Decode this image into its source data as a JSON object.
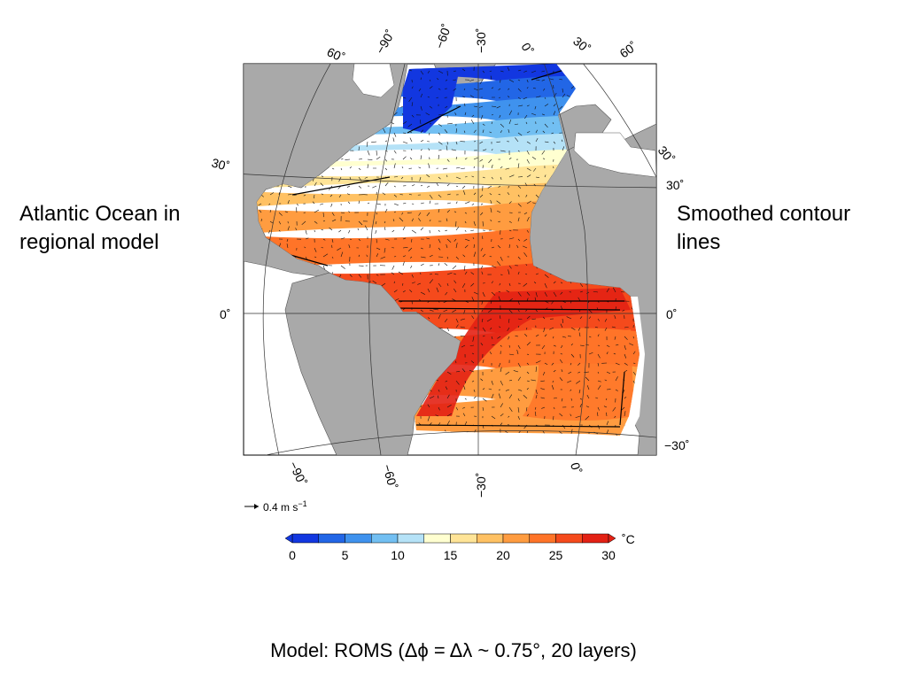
{
  "slide": {
    "left_label": "Atlantic Ocean in regional model",
    "right_label": "Smoothed contour lines",
    "caption": "Model: ROMS (Δϕ = Δλ ~ 0.75°, 20 layers)"
  },
  "map": {
    "top_labels": [
      "60˚",
      "−90˚",
      "−60˚",
      "−30˚",
      "0˚",
      "30˚",
      "60˚"
    ],
    "left_labels": [
      "30˚",
      "0˚"
    ],
    "right_labels": [
      "30˚",
      "30˚",
      "0˚",
      "−30˚"
    ],
    "bottom_labels": [
      "−90˚",
      "−60˚",
      "−30˚",
      "0˚"
    ],
    "vector_scale_label": "0.4 m s",
    "vector_scale_exponent": "−1",
    "colors": {
      "land": "#a9a9a9",
      "ocean_white": "#ffffff"
    }
  },
  "colorbar": {
    "unit": "˚C",
    "tick_labels": [
      "0",
      "5",
      "10",
      "15",
      "20",
      "25",
      "30"
    ],
    "min": 0,
    "max": 30,
    "step": 2.5,
    "colors": [
      "#1237e0",
      "#2266e6",
      "#3f92ee",
      "#72bff2",
      "#b5e2f7",
      "#ffffd0",
      "#ffe497",
      "#ffc163",
      "#ff9c40",
      "#ff7428",
      "#f54a1c",
      "#e32114"
    ]
  }
}
